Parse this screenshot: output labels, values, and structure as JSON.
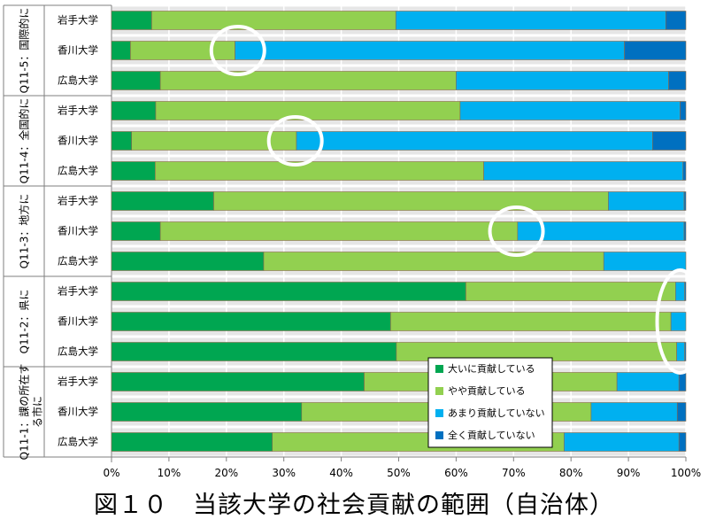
{
  "chart_data": {
    "type": "bar",
    "orientation": "horizontal",
    "stacked": true,
    "caption": "図１０　当該大学の社会貢献の範囲（自治体）",
    "groups": [
      {
        "label": "Q11-5：国際的に",
        "bars": [
          {
            "label": "岩手大学",
            "values": [
              7,
              42.5,
              47,
              3.5
            ]
          },
          {
            "label": "香川大学",
            "values": [
              3.3,
              18.2,
              67.8,
              10.7
            ]
          },
          {
            "label": "広島大学",
            "values": [
              8.5,
              51.5,
              37,
              3
            ]
          }
        ]
      },
      {
        "label": "Q11-4：全国的に",
        "bars": [
          {
            "label": "岩手大学",
            "values": [
              7.7,
              53,
              38.3,
              1
            ]
          },
          {
            "label": "香川大学",
            "values": [
              3.5,
              28.7,
              62,
              5.8
            ]
          },
          {
            "label": "広島大学",
            "values": [
              7.6,
              57.2,
              34.7,
              0.5
            ]
          }
        ]
      },
      {
        "label": "Q11-3：地方に",
        "bars": [
          {
            "label": "岩手大学",
            "values": [
              17.8,
              68.7,
              13.2,
              0.3
            ]
          },
          {
            "label": "香川大学",
            "values": [
              8.5,
              62.2,
              29,
              0.3
            ]
          },
          {
            "label": "広島大学",
            "values": [
              26.5,
              59.2,
              14.3,
              0
            ]
          }
        ]
      },
      {
        "label": "Q11-2：県に",
        "bars": [
          {
            "label": "岩手大学",
            "values": [
              61.7,
              36.5,
              1.6,
              0.2
            ]
          },
          {
            "label": "香川大学",
            "values": [
              48.6,
              48.8,
              2.6,
              0
            ]
          },
          {
            "label": "広島大学",
            "values": [
              49.6,
              48.8,
              1.4,
              0.2
            ]
          }
        ]
      },
      {
        "label": "Q11-1：課の所在する市に",
        "bars": [
          {
            "label": "岩手大学",
            "values": [
              44,
              44,
              10.8,
              1.2
            ]
          },
          {
            "label": "香川大学",
            "values": [
              33.1,
              50.4,
              15,
              1.5
            ]
          },
          {
            "label": "広島大学",
            "values": [
              28,
              50.8,
              20,
              1.2
            ]
          }
        ]
      }
    ],
    "series": [
      {
        "name": "大いに貢献している",
        "color": "#00a651"
      },
      {
        "name": "やや貢献している",
        "color": "#92d050"
      },
      {
        "name": "あまり貢献していない",
        "color": "#00b0f0"
      },
      {
        "name": "全く貢献していない",
        "color": "#0070c0"
      }
    ],
    "x_ticks": [
      "0%",
      "10%",
      "20%",
      "30%",
      "40%",
      "50%",
      "60%",
      "70%",
      "80%",
      "90%",
      "100%"
    ],
    "xlim": [
      0,
      100
    ],
    "grid": true,
    "legend_position": "bottom-center-inside",
    "highlight_circles": [
      {
        "group": 0,
        "bar": 1,
        "at": 22
      },
      {
        "group": 1,
        "bar": 1,
        "at": 32
      },
      {
        "group": 2,
        "bar": 1,
        "at": 70.5
      },
      {
        "group": 3,
        "bar": 1,
        "at": 99
      }
    ]
  }
}
